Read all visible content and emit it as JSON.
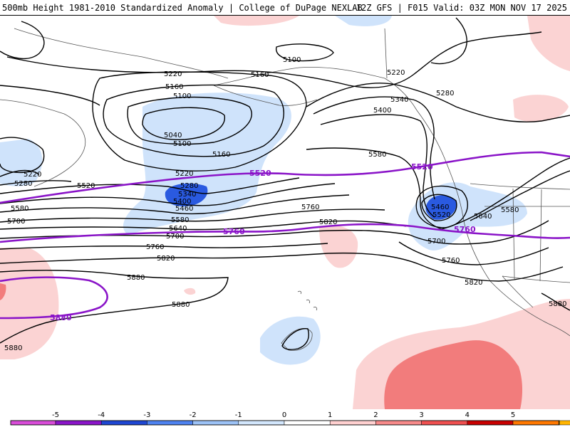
{
  "header": {
    "title": "500mb Height 1981-2010 Standardized Anomaly | College of DuPage NEXLAB",
    "run_info": "12Z GFS | F015 Valid: 03Z MON NOV 17 2025"
  },
  "map": {
    "contour_labels": [
      "5100",
      "5160",
      "5220",
      "5280",
      "5340",
      "5400",
      "5460",
      "5520",
      "5580",
      "5640",
      "5700",
      "5760",
      "5820",
      "5880"
    ],
    "highlight_contours": [
      "5520",
      "5760",
      "5880"
    ]
  },
  "colorbar": {
    "ticks": [
      "-5",
      "-4",
      "-3",
      "-2",
      "-1",
      "0",
      "1",
      "2",
      "3",
      "4",
      "5"
    ],
    "colors": [
      "#d84cd8",
      "#8a14c8",
      "#1e46d2",
      "#4e82f0",
      "#9cc2f6",
      "#d2e6fc",
      "#ffffff",
      "#ffd0d0",
      "#f78a8a",
      "#ef5050",
      "#c80000",
      "#ff7800",
      "#ffb400"
    ]
  },
  "colors": {
    "neg1": "#cfe3fb",
    "neg2": "#5c8ef0",
    "neg3": "#2a5ae0",
    "pos1": "#fbd3d3",
    "pos2": "#f27c7c",
    "purple": "#8a14c8"
  }
}
